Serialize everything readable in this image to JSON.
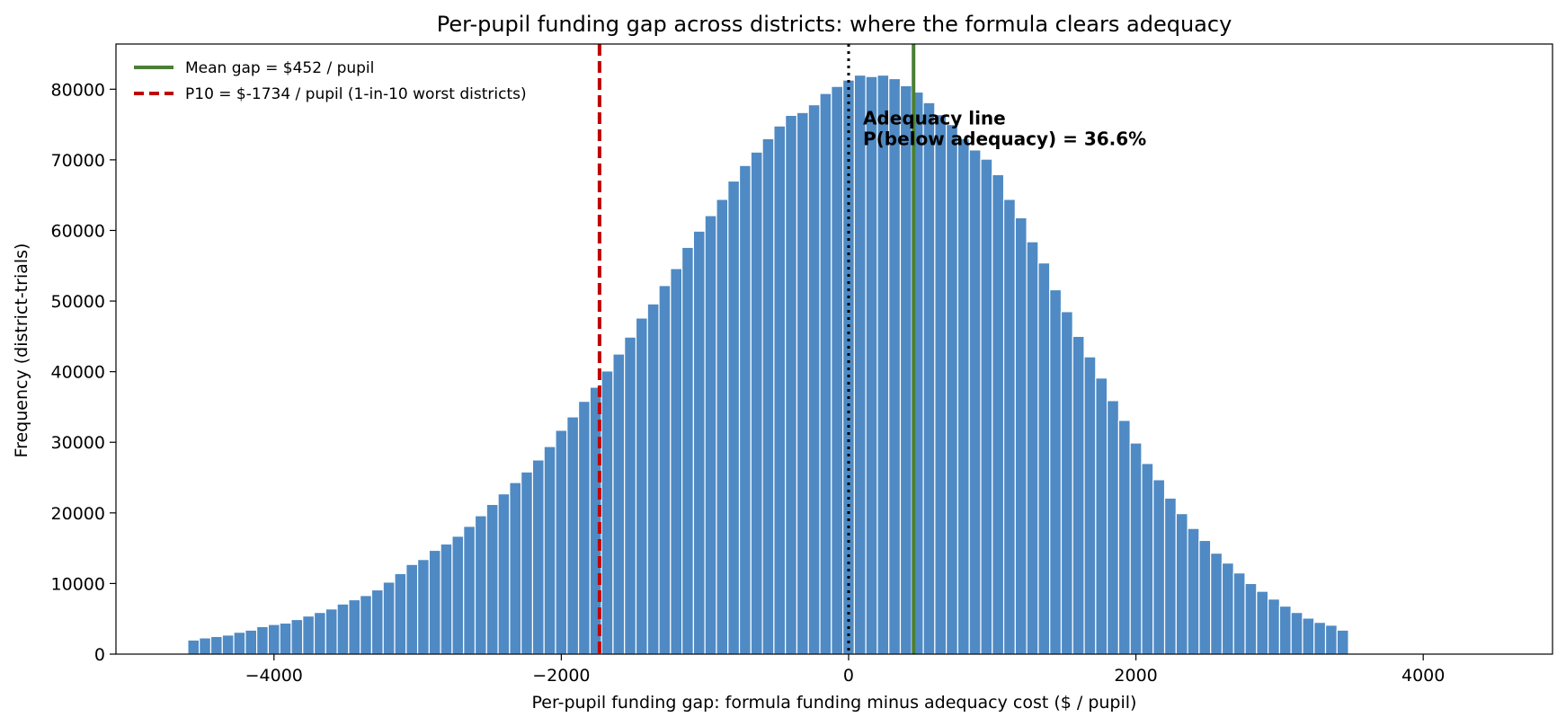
{
  "chart_data": {
    "type": "bar",
    "title": "Per-pupil funding gap across districts: where the formula clears adequacy",
    "xlabel": "Per-pupil funding gap: formula funding minus adequacy cost  ($ / pupil)",
    "ylabel": "Frequency  (district-trials)",
    "xlim": [
      -5100,
      4900
    ],
    "ylim": [
      0,
      86400
    ],
    "xticks": [
      -4000,
      -2000,
      0,
      2000,
      4000
    ],
    "xtick_labels": [
      "−4000",
      "−2000",
      "0",
      "2000",
      "4000"
    ],
    "yticks": [
      0,
      10000,
      20000,
      30000,
      40000,
      50000,
      60000,
      70000,
      80000
    ],
    "ytick_labels": [
      "0",
      "10000",
      "20000",
      "30000",
      "40000",
      "50000",
      "60000",
      "70000",
      "80000"
    ],
    "grid": false,
    "legend_position": "upper-left",
    "bin_width": 80,
    "bin_start": -4600,
    "bar_color": "#4f8ac4",
    "values": [
      2000,
      2300,
      2500,
      2700,
      3100,
      3400,
      3900,
      4200,
      4400,
      4900,
      5400,
      5900,
      6400,
      7100,
      7700,
      8300,
      9100,
      10200,
      11400,
      12700,
      13400,
      14700,
      15600,
      16700,
      18100,
      19600,
      21200,
      22700,
      24300,
      25800,
      27500,
      29400,
      31700,
      33600,
      35800,
      37800,
      40100,
      42500,
      44900,
      47600,
      49600,
      52200,
      54600,
      57600,
      59900,
      62100,
      64400,
      67000,
      69200,
      71100,
      73000,
      74800,
      76300,
      76700,
      77800,
      79400,
      80400,
      81300,
      82000,
      81800,
      82000,
      81500,
      80500,
      79600,
      78100,
      76400,
      75000,
      73000,
      71400,
      70100,
      67900,
      64400,
      61800,
      58400,
      55400,
      51600,
      48500,
      45000,
      42100,
      39100,
      35900,
      33100,
      29900,
      27000,
      24700,
      22100,
      19900,
      17800,
      16100,
      14300,
      12900,
      11500,
      10000,
      8900,
      7800,
      6800,
      5900,
      5100,
      4500,
      4100,
      3400
    ],
    "reference_lines": [
      {
        "name": "Mean gap = $452 / pupil",
        "x": 452,
        "color": "#4a7f35",
        "style": "solid"
      },
      {
        "name": "P10 = $-1734 / pupil  (1-in-10 worst districts)",
        "x": -1734,
        "color": "#c00000",
        "style": "dashed"
      },
      {
        "name": "",
        "x": 0,
        "color": "#000000",
        "style": "dotted"
      }
    ],
    "annotation": {
      "line1": "Adequacy line",
      "line2": "P(below adequacy) = 36.6%",
      "x": 100,
      "y": 75000
    }
  }
}
